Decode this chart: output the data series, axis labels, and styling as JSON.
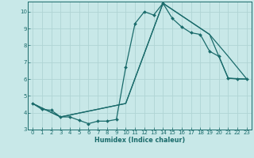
{
  "xlabel": "Humidex (Indice chaleur)",
  "bg_color": "#c8e8e8",
  "line_color": "#1a6b6b",
  "grid_color": "#b0d4d4",
  "xlim": [
    -0.5,
    23.5
  ],
  "ylim": [
    3,
    10.6
  ],
  "xticks": [
    0,
    1,
    2,
    3,
    4,
    5,
    6,
    7,
    8,
    9,
    10,
    11,
    12,
    13,
    14,
    15,
    16,
    17,
    18,
    19,
    20,
    21,
    22,
    23
  ],
  "yticks": [
    3,
    4,
    5,
    6,
    7,
    8,
    9,
    10
  ],
  "line1_x": [
    0,
    1,
    2,
    3,
    4,
    5,
    6,
    7,
    8,
    9,
    10,
    11,
    12,
    13,
    14,
    15,
    16,
    17,
    18,
    19,
    20,
    21,
    22,
    23
  ],
  "line1_y": [
    4.55,
    4.2,
    4.15,
    3.75,
    3.75,
    3.55,
    3.35,
    3.5,
    3.5,
    3.6,
    6.7,
    9.3,
    10.0,
    9.8,
    10.5,
    9.6,
    9.1,
    8.75,
    8.65,
    7.65,
    7.35,
    6.05,
    6.0,
    6.0
  ],
  "line2_x": [
    0,
    3,
    10,
    14,
    19,
    21,
    23
  ],
  "line2_y": [
    4.55,
    3.75,
    4.55,
    10.5,
    8.65,
    7.35,
    6.0
  ],
  "line3_x": [
    0,
    3,
    10,
    14,
    19,
    21,
    23
  ],
  "line3_y": [
    4.55,
    3.75,
    4.55,
    10.5,
    8.65,
    6.05,
    6.0
  ]
}
